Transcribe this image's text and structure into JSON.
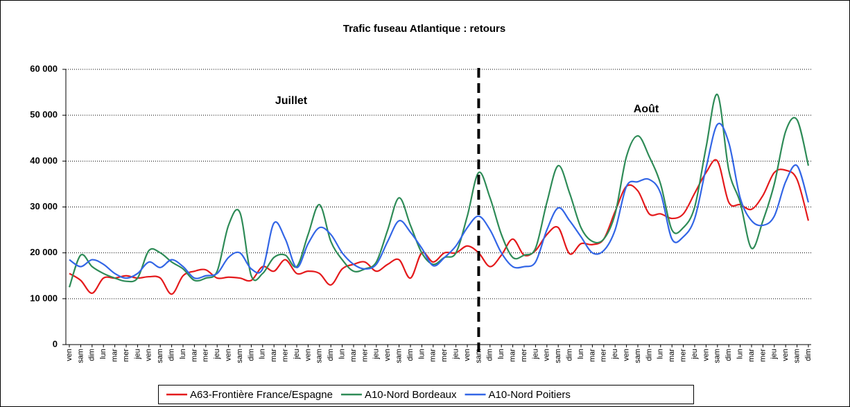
{
  "chart_data": {
    "type": "line",
    "title": "Trafic fuseau Atlantique : retours",
    "annotations": [
      "Juillet",
      "Août"
    ],
    "categories": [
      "ven",
      "sam",
      "dim",
      "lun",
      "mar",
      "mer",
      "jeu",
      "ven",
      "sam",
      "dim",
      "lun",
      "mar",
      "mer",
      "jeu",
      "ven",
      "sam",
      "dim",
      "lun",
      "mar",
      "mer",
      "jeu",
      "ven",
      "sam",
      "dim",
      "lun",
      "mar",
      "mer",
      "jeu",
      "ven",
      "sam",
      "dim",
      "lun",
      "mar",
      "mer",
      "jeu",
      "ven",
      "sam",
      "dim",
      "lun",
      "mar",
      "mer",
      "jeu",
      "ven",
      "sam",
      "dim",
      "lun",
      "mar",
      "mer",
      "jeu",
      "ven",
      "sam",
      "dim",
      "lun",
      "mar",
      "mer",
      "jeu",
      "ven",
      "sam",
      "dim",
      "lun",
      "mar",
      "mer",
      "jeu",
      "ven",
      "sam",
      "dim"
    ],
    "series": [
      {
        "name": "A63-Frontière France/Espagne",
        "color": "#e41a1c",
        "values": [
          15500,
          14000,
          11200,
          14500,
          14500,
          15000,
          14500,
          14800,
          14500,
          11000,
          15000,
          16000,
          16300,
          14500,
          14700,
          14500,
          14000,
          17000,
          16000,
          18500,
          15500,
          16000,
          15500,
          13000,
          16500,
          17500,
          18000,
          16000,
          17500,
          18500,
          14500,
          20000,
          18000,
          20000,
          20000,
          21500,
          20000,
          17000,
          19500,
          23000,
          19500,
          20500,
          24000,
          25500,
          19800,
          22000,
          21800,
          23000,
          29000,
          34500,
          33500,
          28500,
          28500,
          27500,
          28500,
          33000,
          37500,
          40000,
          31000,
          30500,
          29500,
          32500,
          37500,
          38000,
          36000,
          27000
        ]
      },
      {
        "name": "A10-Nord Bordeaux",
        "color": "#2e8b57",
        "values": [
          12500,
          19500,
          17000,
          15500,
          14500,
          13800,
          14500,
          20500,
          20000,
          18000,
          16500,
          14000,
          14500,
          16000,
          26000,
          28800,
          15000,
          15500,
          19000,
          19500,
          17000,
          24000,
          30500,
          22500,
          18500,
          16000,
          16500,
          18000,
          25000,
          32000,
          26000,
          20000,
          17500,
          19000,
          20000,
          28000,
          37500,
          32000,
          24000,
          19000,
          19500,
          21000,
          31000,
          39000,
          33000,
          25500,
          22500,
          23000,
          28500,
          41000,
          45500,
          41000,
          35000,
          25000,
          25500,
          30000,
          43000,
          54500,
          38000,
          31000,
          21000,
          27000,
          35000,
          46500,
          49000,
          39000
        ]
      },
      {
        "name": "A10-Nord Poitiers",
        "color": "#3366e6",
        "values": [
          18500,
          17000,
          18500,
          17500,
          15500,
          14500,
          15500,
          18000,
          16800,
          18500,
          17000,
          14500,
          15000,
          15500,
          19000,
          20000,
          16500,
          16500,
          26500,
          23000,
          16800,
          22000,
          25500,
          24000,
          20000,
          17500,
          16500,
          17500,
          22500,
          27000,
          24500,
          21000,
          17200,
          19000,
          21500,
          25500,
          28000,
          25000,
          20000,
          17000,
          17000,
          18000,
          25000,
          29800,
          27000,
          23500,
          20000,
          20500,
          25000,
          34500,
          35500,
          36000,
          33000,
          23000,
          23500,
          27500,
          38500,
          48000,
          44000,
          32000,
          27000,
          26000,
          28000,
          35500,
          39000,
          31000
        ]
      }
    ],
    "ylim": [
      0,
      60000
    ],
    "yticks": [
      0,
      {
        "value": 10000,
        "label": "10 000"
      },
      {
        "value": 20000,
        "label": "20 000"
      },
      {
        "value": 30000,
        "label": "30 000"
      },
      {
        "value": 40000,
        "label": "40 000"
      },
      {
        "value": 50000,
        "label": "50 000"
      },
      {
        "value": 60000,
        "label": "60 000"
      }
    ],
    "grid": true
  }
}
